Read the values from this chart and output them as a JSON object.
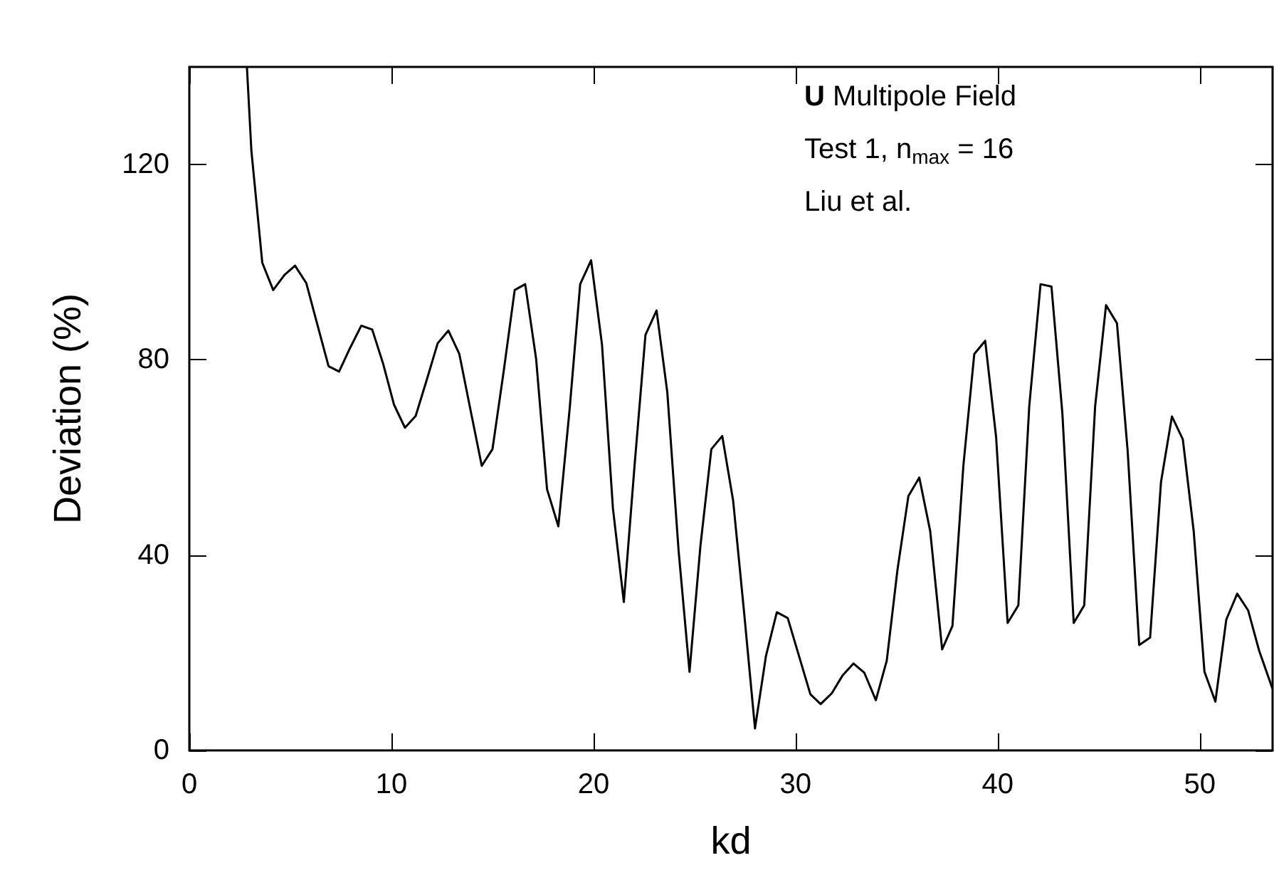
{
  "chart_data": {
    "type": "line",
    "xlabel": "kd",
    "ylabel": "Deviation (%)",
    "annotations": [
      "U Multipole Field",
      "Test 1, n$_{max}$ = 16",
      "Liu et al."
    ],
    "xlim": [
      0,
      53.6
    ],
    "ylim": [
      0,
      140
    ],
    "xticks": [
      0,
      10,
      20,
      30,
      40,
      50
    ],
    "yticks": [
      0,
      40,
      80,
      120
    ],
    "grid": false,
    "marker": "none",
    "line_style": "solid",
    "series": [
      {
        "color": "#000000",
        "x": [
          2.85,
          3.07,
          3.61,
          4.15,
          4.71,
          5.23,
          5.79,
          6.35,
          6.89,
          7.41,
          7.95,
          8.51,
          9.05,
          9.59,
          10.13,
          10.67,
          11.2,
          11.74,
          12.29,
          12.82,
          13.36,
          13.9,
          14.47,
          15.0,
          15.56,
          16.1,
          16.62,
          17.16,
          17.7,
          18.26,
          18.82,
          19.34,
          19.88,
          20.42,
          20.96,
          21.5,
          22.03,
          22.57,
          23.12,
          23.65,
          24.21,
          24.75,
          25.29,
          25.83,
          26.37,
          26.91,
          27.45,
          27.99,
          28.53,
          29.07,
          29.61,
          30.17,
          30.73,
          31.24,
          31.79,
          32.33,
          32.86,
          33.4,
          33.97,
          34.51,
          35.04,
          35.58,
          36.12,
          36.66,
          37.25,
          37.76,
          38.3,
          38.84,
          39.38,
          39.92,
          40.49,
          41.02,
          41.56,
          42.12,
          42.66,
          43.2,
          43.76,
          44.28,
          44.82,
          45.36,
          45.9,
          46.43,
          47.0,
          47.54,
          48.08,
          48.62,
          49.16,
          49.7,
          50.23,
          50.77,
          51.31,
          51.85,
          52.39,
          52.93,
          53.59
        ],
        "values": [
          140,
          122.9,
          99.9,
          94.3,
          97.4,
          99.3,
          95.7,
          87.0,
          78.7,
          77.6,
          82.4,
          87.0,
          86.2,
          79.2,
          70.8,
          66.1,
          68.5,
          75.8,
          83.4,
          86.0,
          81.2,
          70.0,
          58.3,
          61.7,
          77.8,
          94.3,
          95.5,
          80.2,
          53.5,
          45.9,
          70.0,
          95.5,
          100.4,
          83.1,
          49.6,
          30.4,
          58.3,
          85.1,
          90.1,
          73.4,
          40.9,
          16.1,
          41.9,
          61.7,
          64.4,
          51.1,
          28.3,
          4.5,
          19.3,
          28.3,
          27.1,
          19.3,
          11.5,
          9.5,
          11.7,
          15.4,
          17.8,
          15.9,
          10.3,
          18.4,
          37.0,
          52.1,
          55.9,
          44.9,
          20.7,
          25.5,
          58.3,
          81.2,
          83.9,
          64.2,
          26.1,
          29.7,
          70.5,
          95.5,
          95.0,
          69.0,
          26.1,
          29.7,
          70.5,
          91.2,
          87.5,
          61.3,
          21.6,
          23.1,
          55.0,
          68.4,
          63.7,
          44.8,
          16.1,
          10.0,
          26.8,
          32.1,
          28.7,
          20.5,
          12.7
        ]
      }
    ]
  }
}
